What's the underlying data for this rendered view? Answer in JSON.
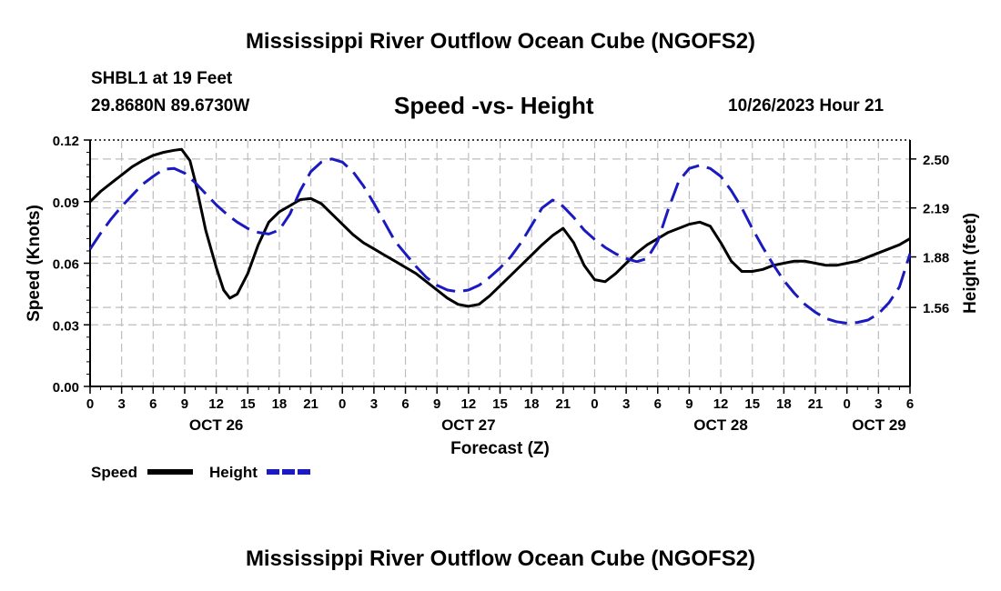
{
  "header": {
    "title": "Mississippi River Outflow Ocean Cube (NGOFS2)",
    "station": "SHBL1 at 19 Feet",
    "coordinates": "29.8680N  89.6730W",
    "subtitle": "Speed -vs- Height",
    "datetime": "10/26/2023 Hour 21"
  },
  "footer": {
    "title": "Mississippi River Outflow Ocean Cube (NGOFS2)"
  },
  "chart_data": {
    "type": "line",
    "xlabel": "Forecast (Z)",
    "ylabel": "Speed (Knots)",
    "y2label": "Height (feet)",
    "x_unit": "hours since OCT 26 00Z",
    "xlim": [
      0,
      78
    ],
    "x_ticks": [
      0,
      3,
      6,
      9,
      12,
      15,
      18,
      21,
      24,
      27,
      30,
      33,
      36,
      39,
      42,
      45,
      48,
      51,
      54,
      57,
      60,
      63,
      66,
      69,
      72,
      75,
      78
    ],
    "x_tick_labels": [
      "0",
      "3",
      "6",
      "9",
      "12",
      "15",
      "18",
      "21",
      "0",
      "3",
      "6",
      "9",
      "12",
      "15",
      "18",
      "21",
      "0",
      "3",
      "6",
      "9",
      "12",
      "15",
      "18",
      "21",
      "0",
      "3",
      "6"
    ],
    "date_labels": [
      {
        "x": 12,
        "label": "OCT 26"
      },
      {
        "x": 36,
        "label": "OCT 27"
      },
      {
        "x": 60,
        "label": "OCT 28"
      },
      {
        "x": 78,
        "label": "OCT 29"
      }
    ],
    "ylim": [
      0,
      0.12
    ],
    "y_ticks": [
      0.0,
      0.03,
      0.06,
      0.09,
      0.12
    ],
    "y_tick_labels": [
      "0.00",
      "0.03",
      "0.06",
      "0.09",
      "0.12"
    ],
    "y2lim": [
      1.06,
      2.62
    ],
    "y2_ticks": [
      1.56,
      1.88,
      2.19,
      2.5
    ],
    "y2_tick_labels": [
      "1.56",
      "1.88",
      "2.19",
      "2.50"
    ],
    "legend": {
      "placement": "bottom-left",
      "entries": [
        "Speed",
        "Height"
      ]
    },
    "series": [
      {
        "name": "Speed",
        "axis": "left",
        "color": "#000000",
        "style": "solid",
        "x": [
          0,
          1,
          2,
          3,
          4,
          5,
          6,
          7,
          8,
          8.7,
          9.5,
          10,
          11,
          12,
          12.7,
          13.3,
          14,
          15,
          16,
          17,
          18,
          19,
          20,
          21,
          22,
          23,
          24,
          25,
          26,
          27,
          28,
          29,
          30,
          31,
          32,
          33,
          34,
          35,
          36,
          37,
          38,
          39,
          40,
          41,
          42,
          43,
          44,
          45,
          46,
          47,
          48,
          49,
          50,
          51,
          52,
          53,
          54,
          55,
          56,
          57,
          58,
          59,
          60,
          61,
          62,
          63,
          64,
          65,
          66,
          67,
          68,
          69,
          70,
          71,
          72,
          73,
          74,
          75,
          76,
          77,
          78
        ],
        "values": [
          0.09,
          0.095,
          0.099,
          0.103,
          0.107,
          0.11,
          0.1125,
          0.114,
          0.115,
          0.1155,
          0.11,
          0.1,
          0.076,
          0.058,
          0.047,
          0.043,
          0.045,
          0.055,
          0.069,
          0.08,
          0.085,
          0.088,
          0.091,
          0.0915,
          0.089,
          0.084,
          0.079,
          0.074,
          0.07,
          0.067,
          0.064,
          0.061,
          0.058,
          0.055,
          0.051,
          0.047,
          0.043,
          0.04,
          0.039,
          0.04,
          0.044,
          0.049,
          0.054,
          0.059,
          0.064,
          0.069,
          0.0735,
          0.077,
          0.07,
          0.059,
          0.052,
          0.051,
          0.055,
          0.06,
          0.065,
          0.069,
          0.072,
          0.075,
          0.077,
          0.079,
          0.08,
          0.078,
          0.07,
          0.061,
          0.056,
          0.056,
          0.057,
          0.059,
          0.06,
          0.061,
          0.061,
          0.06,
          0.059,
          0.059,
          0.06,
          0.061,
          0.063,
          0.065,
          0.067,
          0.069,
          0.072
        ]
      },
      {
        "name": "Height",
        "axis": "right",
        "color": "#1a1ac0",
        "style": "dashed",
        "x": [
          0,
          1,
          2,
          3,
          4,
          5,
          6,
          7,
          8,
          9,
          10,
          11,
          12,
          13,
          14,
          15,
          16,
          17,
          18,
          19,
          20,
          21,
          22,
          23,
          24,
          25,
          26,
          27,
          28,
          29,
          30,
          31,
          32,
          33,
          34,
          35,
          36,
          37,
          38,
          39,
          40,
          41,
          42,
          43,
          44,
          45,
          46,
          47,
          48,
          49,
          50,
          51,
          52,
          53,
          54,
          55,
          56,
          57,
          58,
          59,
          60,
          61,
          62,
          63,
          64,
          65,
          66,
          67,
          68,
          69,
          70,
          71,
          72,
          73,
          74,
          75,
          76,
          77,
          78
        ],
        "values": [
          1.93,
          2.03,
          2.12,
          2.2,
          2.27,
          2.34,
          2.39,
          2.435,
          2.44,
          2.41,
          2.35,
          2.28,
          2.21,
          2.15,
          2.1,
          2.06,
          2.035,
          2.025,
          2.05,
          2.15,
          2.3,
          2.42,
          2.48,
          2.5,
          2.48,
          2.42,
          2.33,
          2.22,
          2.1,
          1.98,
          1.9,
          1.82,
          1.75,
          1.7,
          1.67,
          1.66,
          1.67,
          1.7,
          1.75,
          1.81,
          1.88,
          1.97,
          2.08,
          2.19,
          2.24,
          2.2,
          2.13,
          2.05,
          1.99,
          1.94,
          1.9,
          1.87,
          1.85,
          1.87,
          1.98,
          2.18,
          2.36,
          2.44,
          2.46,
          2.44,
          2.39,
          2.3,
          2.19,
          2.06,
          1.94,
          1.83,
          1.73,
          1.65,
          1.58,
          1.53,
          1.49,
          1.47,
          1.46,
          1.465,
          1.48,
          1.52,
          1.59,
          1.69,
          1.9
        ]
      }
    ]
  }
}
